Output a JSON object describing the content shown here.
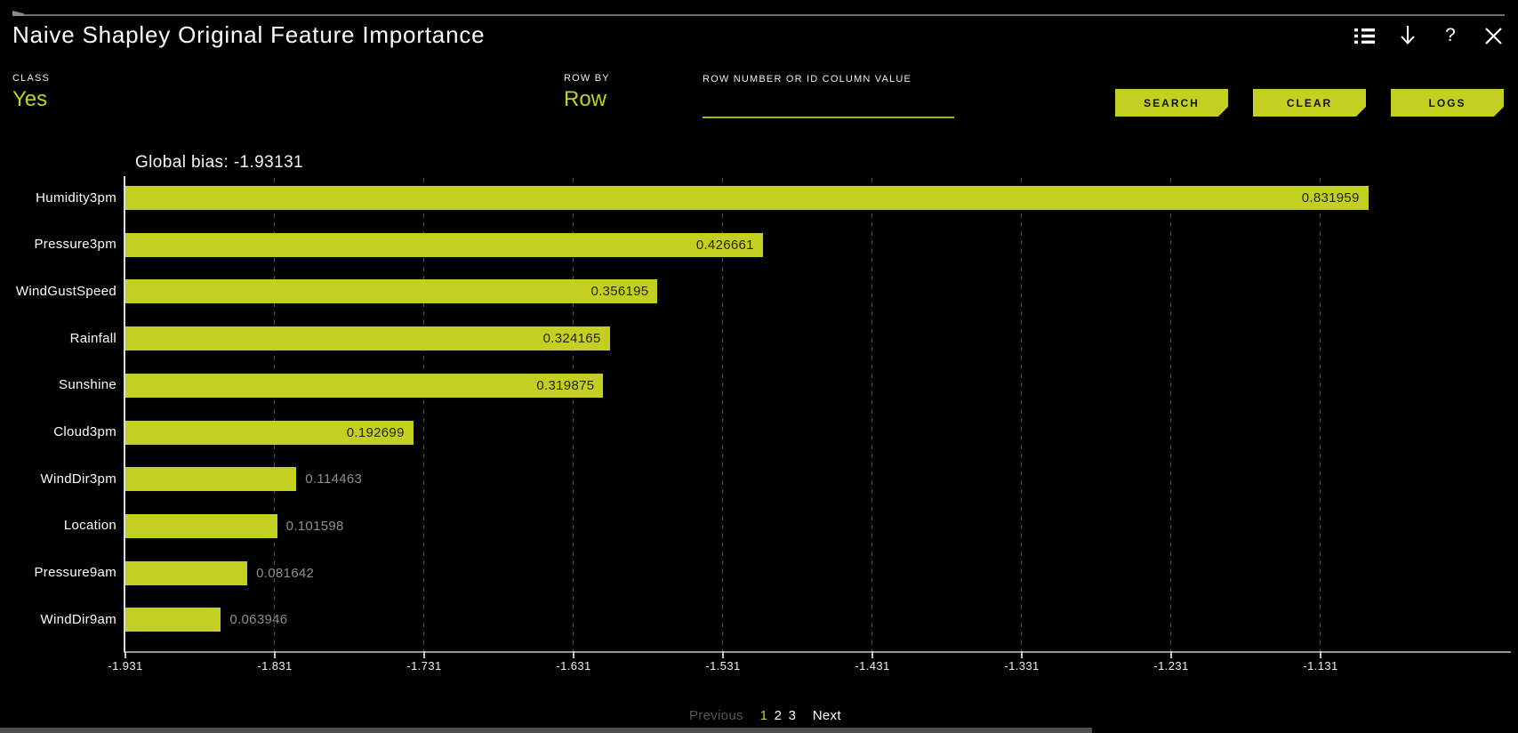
{
  "accent_color": "#c3d022",
  "header": {
    "title": "Naive Shapley Original Feature Importance",
    "icons": {
      "list": "list-icon",
      "download": "download-icon",
      "help": "?",
      "close": "close-icon"
    }
  },
  "controls": {
    "class_label": "CLASS",
    "class_value": "Yes",
    "row_by_label": "ROW BY",
    "row_by_value": "Row",
    "row_input_label": "ROW NUMBER OR ID COLUMN VALUE",
    "row_input_value": "",
    "search_label": "SEARCH",
    "clear_label": "CLEAR",
    "logs_label": "LOGS"
  },
  "chart_data": {
    "type": "bar",
    "orientation": "horizontal",
    "title": "Global bias: -1.93131",
    "global_bias": -1.93131,
    "categories": [
      "Humidity3pm",
      "Pressure3pm",
      "WindGustSpeed",
      "Rainfall",
      "Sunshine",
      "Cloud3pm",
      "WindDir3pm",
      "Location",
      "Pressure9am",
      "WindDir9am"
    ],
    "values": [
      0.831959,
      0.426661,
      0.356195,
      0.324165,
      0.319875,
      0.192699,
      0.114463,
      0.101598,
      0.081642,
      0.063946
    ],
    "value_labels": [
      "0.831959",
      "0.426661",
      "0.356195",
      "0.324165",
      "0.319875",
      "0.192699",
      "0.114463",
      "0.101598",
      "0.081642",
      "0.063946"
    ],
    "x_ticks": [
      "-1.931",
      "-1.831",
      "-1.731",
      "-1.631",
      "-1.531",
      "-1.431",
      "-1.331",
      "-1.231",
      "-1.131"
    ],
    "x_tick_values": [
      -1.931,
      -1.831,
      -1.731,
      -1.631,
      -1.531,
      -1.431,
      -1.331,
      -1.231,
      -1.131
    ],
    "xlim": [
      -1.931,
      -1.098
    ],
    "grid": "vertical-dashed",
    "bar_color": "#c3d022",
    "legend": null
  },
  "pagination": {
    "previous_label": "Previous",
    "pages": [
      "1",
      "2",
      "3"
    ],
    "current_page": "1",
    "next_label": "Next"
  }
}
